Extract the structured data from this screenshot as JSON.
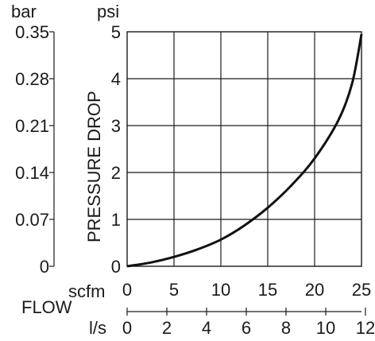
{
  "chart_data": {
    "type": "line",
    "ylabel": "PRESSURE DROP",
    "xlabel": "FLOW",
    "left_axis": {
      "unit": "bar",
      "ticks": [
        "0.35",
        "0.28",
        "0.21",
        "0.14",
        "0.07",
        "0"
      ],
      "ylim": [
        0,
        0.35
      ]
    },
    "right_axis": {
      "unit": "psi",
      "ticks": [
        "5",
        "4",
        "3",
        "2",
        "1",
        "0"
      ],
      "ylim": [
        0,
        5
      ]
    },
    "x_axis": {
      "unit": "scfm",
      "ticks": [
        "0",
        "5",
        "10",
        "15",
        "20",
        "25"
      ],
      "xlim": [
        0,
        25
      ]
    },
    "x_axis_secondary": {
      "unit": "l/s",
      "ticks": [
        "0",
        "2",
        "4",
        "6",
        "8",
        "10",
        "12"
      ],
      "xlim": [
        0,
        11.8
      ]
    },
    "grid": true,
    "series": [
      {
        "x": [
          0,
          2.5,
          5,
          7.5,
          10,
          12.5,
          15,
          17.5,
          20,
          22.5,
          24,
          25
        ],
        "values": [
          0.0,
          0.08,
          0.2,
          0.36,
          0.57,
          0.87,
          1.25,
          1.72,
          2.3,
          3.1,
          3.9,
          4.95
        ]
      }
    ]
  }
}
